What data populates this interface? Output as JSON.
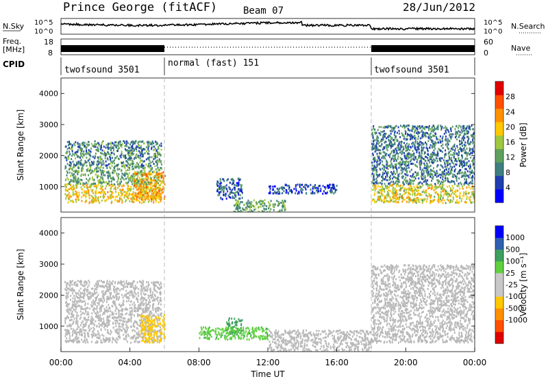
{
  "header": {
    "station": "Prince George (fitACF)",
    "beam": "Beam 07",
    "date": "28/Jun/2012"
  },
  "noise_panel": {
    "left_label": "N.Sky",
    "right_label": "N.Search",
    "y_ticks": [
      "10^5",
      "10^0"
    ]
  },
  "freq_panel": {
    "left_label_line1": "Freq.",
    "left_label_line2": "[MHz]",
    "right_label": "Nave",
    "y_ticks_left": [
      "18",
      "8"
    ],
    "y_ticks_right": [
      "60",
      "0"
    ]
  },
  "cpid": {
    "label": "CPID",
    "segments": [
      {
        "start_hour": 0,
        "end_hour": 6,
        "label": "twofsound 3501"
      },
      {
        "start_hour": 6,
        "end_hour": 18,
        "label": "normal (fast) 151"
      },
      {
        "start_hour": 18,
        "end_hour": 24,
        "label": "twofsound 3501"
      }
    ]
  },
  "colors": {
    "power_scale": [
      "#0000ff",
      "#1f3fb0",
      "#3f7f7f",
      "#5fa05f",
      "#9fc840",
      "#ffc800",
      "#ff9000",
      "#ff5000",
      "#e00000"
    ],
    "velocity_scale": [
      "#e00000",
      "#ff5000",
      "#ff9000",
      "#ffc800",
      "#c8c8c8",
      "#c8c8c8",
      "#60d040",
      "#3f9f5f",
      "#2f5fb0",
      "#0000ff"
    ],
    "ground_scatter": "#b9b9b9"
  },
  "chart_data": [
    {
      "type": "heatmap",
      "panel": "power",
      "ylabel": "Slant Range [km]",
      "xlim": [
        0,
        24
      ],
      "ylim": [
        180,
        4500
      ],
      "y_ticks": [
        1000,
        2000,
        3000,
        4000
      ],
      "colorbar": {
        "label": "Power [dB]",
        "range": [
          0,
          32
        ],
        "ticks": [
          4,
          8,
          12,
          16,
          20,
          24,
          28
        ]
      },
      "scatter_regions": [
        {
          "x": [
            0.2,
            5.8
          ],
          "y": [
            500,
            1100
          ],
          "level_db": 22
        },
        {
          "x": [
            0.2,
            5.8
          ],
          "y": [
            1100,
            1700
          ],
          "level_db": 14
        },
        {
          "x": [
            0.2,
            5.8
          ],
          "y": [
            1700,
            2500
          ],
          "level_db": 11
        },
        {
          "x": [
            4.2,
            6.0
          ],
          "y": [
            600,
            1500
          ],
          "level_db": 24
        },
        {
          "x": [
            9.0,
            10.5
          ],
          "y": [
            600,
            1300
          ],
          "level_db": 8
        },
        {
          "x": [
            10.0,
            13.0
          ],
          "y": [
            200,
            600
          ],
          "level_db": 14
        },
        {
          "x": [
            12.0,
            16.0
          ],
          "y": [
            800,
            1100
          ],
          "level_db": 6
        },
        {
          "x": [
            18.0,
            24.0
          ],
          "y": [
            500,
            1100
          ],
          "level_db": 20
        },
        {
          "x": [
            18.0,
            24.0
          ],
          "y": [
            1100,
            3000
          ],
          "level_db": 10
        }
      ]
    },
    {
      "type": "heatmap",
      "panel": "velocity",
      "xlabel": "Time UT",
      "ylabel": "Slant Range [km]",
      "xlim": [
        0,
        24
      ],
      "ylim": [
        180,
        4500
      ],
      "x_ticks": [
        "00:00",
        "04:00",
        "08:00",
        "12:00",
        "16:00",
        "20:00",
        "00:00"
      ],
      "y_ticks": [
        1000,
        2000,
        3000,
        4000
      ],
      "colorbar": {
        "label": "Velocity [m s⁻¹]",
        "ticks": [
          -1000,
          -500,
          -100,
          -25,
          25,
          100,
          500,
          1000
        ]
      },
      "scatter_regions": [
        {
          "x": [
            0.2,
            5.8
          ],
          "y": [
            500,
            2500
          ],
          "velocity": 0,
          "ground_scatter": true
        },
        {
          "x": [
            4.6,
            6.0
          ],
          "y": [
            500,
            1400
          ],
          "velocity": -300
        },
        {
          "x": [
            9.5,
            10.5
          ],
          "y": [
            700,
            1300
          ],
          "velocity": 200
        },
        {
          "x": [
            8.0,
            12.0
          ],
          "y": [
            600,
            1000
          ],
          "velocity": 80
        },
        {
          "x": [
            12.0,
            18.0
          ],
          "y": [
            200,
            900
          ],
          "velocity": 0,
          "ground_scatter": true
        },
        {
          "x": [
            18.0,
            24.0
          ],
          "y": [
            500,
            3000
          ],
          "velocity": 0,
          "ground_scatter": true
        }
      ]
    }
  ]
}
